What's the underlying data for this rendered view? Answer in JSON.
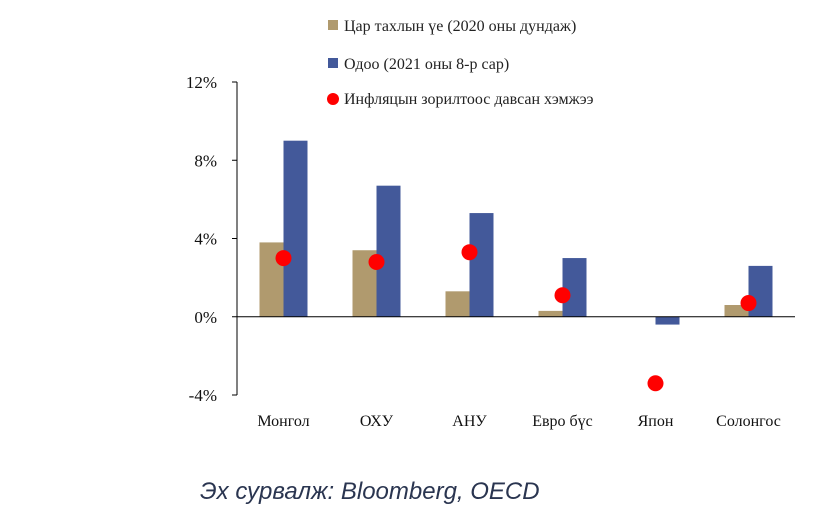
{
  "colors": {
    "previous": "#b09a6e",
    "current": "#43599a",
    "target_excess": "#ff0000",
    "axis": "#000000"
  },
  "source": "Эх сурвалж: Bloomberg, OECD",
  "chart_data": {
    "type": "bar",
    "categories": [
      "Монгол",
      "ОХУ",
      "АНУ",
      "Евро бүс",
      "Япон",
      "Солонгос"
    ],
    "series": [
      {
        "name": "Цар тахлын үе (2020 оны дундаж)",
        "values": [
          3.8,
          3.4,
          1.3,
          0.3,
          0.0,
          0.6
        ]
      },
      {
        "name": "Одоо (2021 оны 8-р сар)",
        "values": [
          9.0,
          6.7,
          5.3,
          3.0,
          -0.4,
          2.6
        ]
      }
    ],
    "markers": {
      "name": "Инфляцын зорилтоос давсан хэмжээ",
      "values": [
        3.0,
        2.8,
        3.3,
        1.1,
        -3.4,
        0.7
      ]
    },
    "yticks": [
      "12%",
      "8%",
      "4%",
      "0%",
      "-4%"
    ],
    "ytick_values": [
      12,
      8,
      4,
      0,
      -4
    ],
    "ylim": [
      -4,
      12
    ],
    "legend_position": "top",
    "grid": false
  }
}
